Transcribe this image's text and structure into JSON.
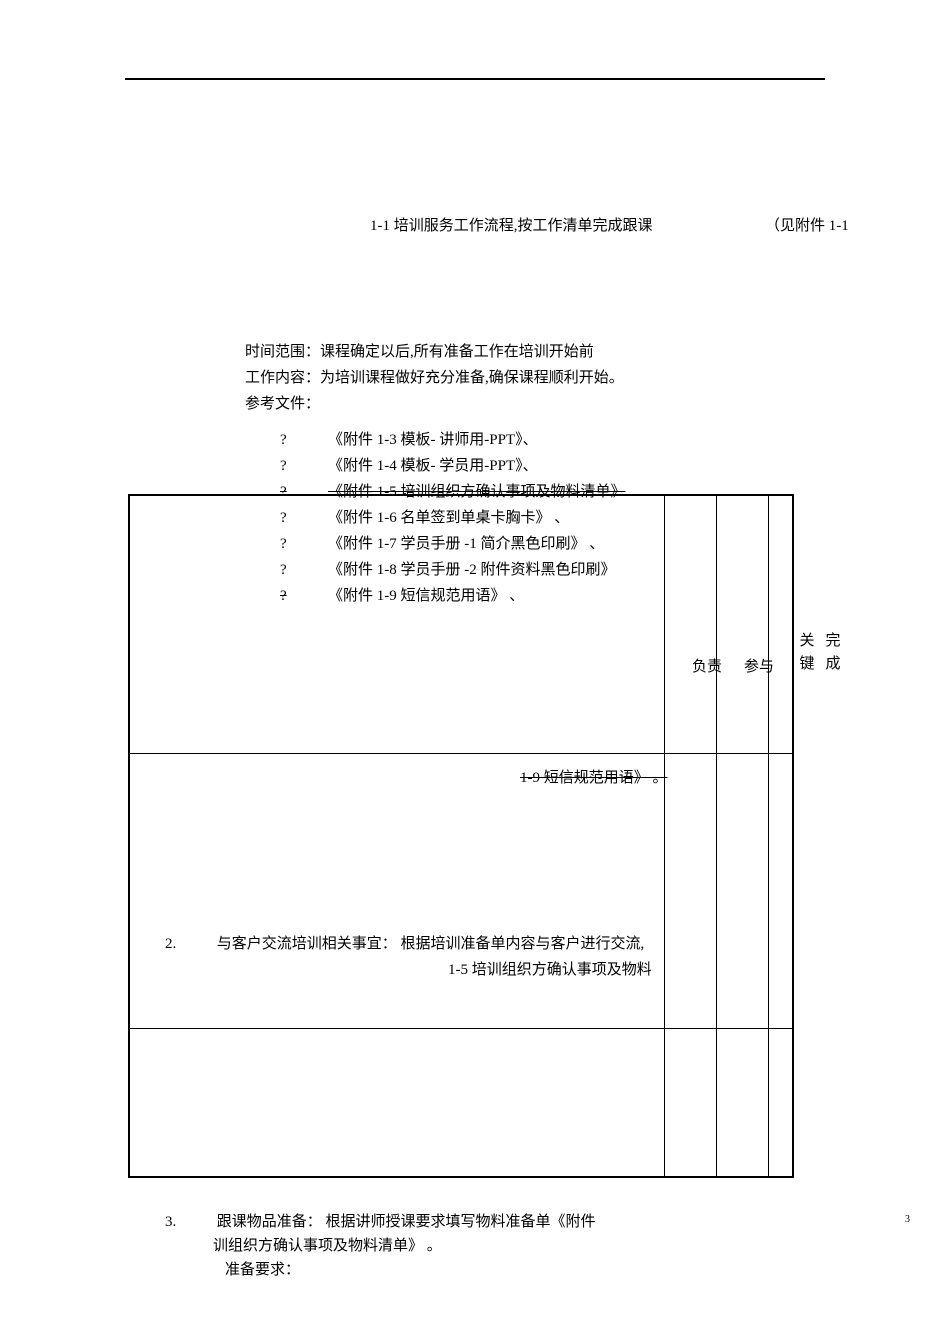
{
  "header_line1_a": "1-1  培训服务工作流程,按工作清单完成跟课",
  "header_line1_b": "（见附件 1-1",
  "intro": {
    "time_scope": "时间范围：课程确定以后,所有准备工作在培训开始前",
    "work_content": "工作内容：为培训课程做好充分准备,确保课程顺利开始。",
    "ref_files": "参考文件："
  },
  "bullets": {
    "q": "?",
    "b1": "《附件 1-3  模板- 讲师用-PPT》、",
    "b2": "《附件 1-4  模板- 学员用-PPT》、",
    "b3": "《附件 1-5  培训组织方确认事项及物料清单》",
    "b4": "《附件 1-6  名单签到单桌卡胸卡》 、",
    "b5": "《附件 1-7  学员手册 -1 简介黑色印刷》 、",
    "b6": "《附件 1-8  学员手册 -2 附件资料黑色印刷》",
    "b7": "《附件 1-9  短信规范用语》 、"
  },
  "table_headers": {
    "fz": "负责",
    "cy": "参与",
    "gj": "关键",
    "wc": "完成"
  },
  "row2": {
    "text1": "1-9 短信规范用语》 。",
    "num2": "2.",
    "text2": "与客户交流培训相关事宜：  根据培训准备单内容与客户进行交流,",
    "text2b": "1-5  培训组织方确认事项及物料"
  },
  "item3": {
    "num": "3.",
    "text_a": "跟课物品准备：  根据讲师授课要求填写物料准备单《附件",
    "text_b": "训组织方确认事项及物料清单》  。",
    "text_c": "准备要求："
  },
  "page_number": "3"
}
